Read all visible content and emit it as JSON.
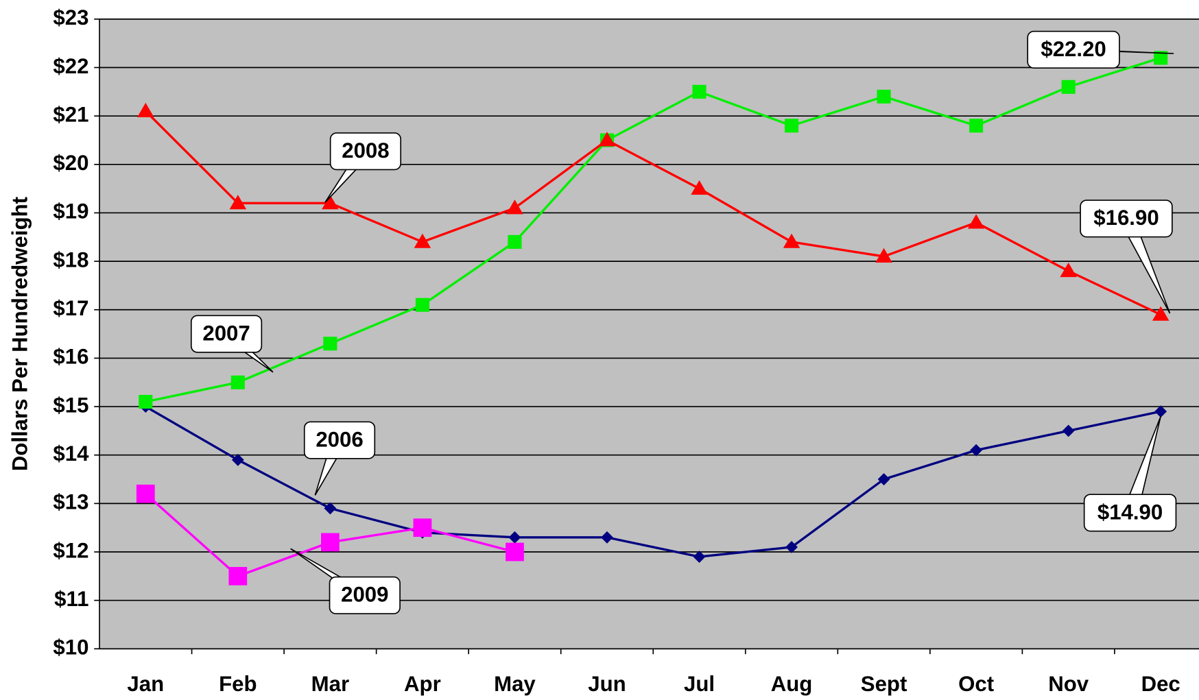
{
  "chart_data": {
    "type": "line",
    "y_label": "Dollars Per Hundredweight",
    "categories": [
      "Jan",
      "Feb",
      "Mar",
      "Apr",
      "May",
      "Jun",
      "Jul",
      "Aug",
      "Sept",
      "Oct",
      "Nov",
      "Dec"
    ],
    "ylim": [
      10,
      23
    ],
    "yticks": [
      {
        "value": 10,
        "label": "$10"
      },
      {
        "value": 11,
        "label": "$11"
      },
      {
        "value": 12,
        "label": "$12"
      },
      {
        "value": 13,
        "label": "$13"
      },
      {
        "value": 14,
        "label": "$14"
      },
      {
        "value": 15,
        "label": "$15"
      },
      {
        "value": 16,
        "label": "$16"
      },
      {
        "value": 17,
        "label": "$17"
      },
      {
        "value": 18,
        "label": "$18"
      },
      {
        "value": 19,
        "label": "$19"
      },
      {
        "value": 20,
        "label": "$20"
      },
      {
        "value": 21,
        "label": "$21"
      },
      {
        "value": 22,
        "label": "$22"
      },
      {
        "value": 23,
        "label": "$23"
      }
    ],
    "grid": true,
    "series": [
      {
        "name": "2006",
        "color": "#000080",
        "marker": "diamond",
        "values": [
          15.0,
          13.9,
          12.9,
          12.4,
          12.3,
          12.3,
          11.9,
          12.1,
          13.5,
          14.1,
          14.5,
          14.9
        ],
        "value_labels": [
          null,
          null,
          null,
          null,
          null,
          null,
          null,
          null,
          null,
          null,
          null,
          "$14.90"
        ]
      },
      {
        "name": "2007",
        "color": "#00ee00",
        "marker": "square",
        "values": [
          15.1,
          15.5,
          16.3,
          17.1,
          18.4,
          20.5,
          21.5,
          20.8,
          21.4,
          20.8,
          21.6,
          22.2
        ],
        "value_labels": [
          null,
          null,
          null,
          null,
          null,
          null,
          null,
          null,
          null,
          null,
          null,
          "$22.20"
        ]
      },
      {
        "name": "2008",
        "color": "#ff0000",
        "marker": "triangle",
        "values": [
          21.1,
          19.2,
          19.2,
          18.4,
          19.1,
          20.5,
          19.5,
          18.4,
          18.1,
          18.8,
          17.8,
          16.9
        ],
        "value_labels": [
          null,
          null,
          null,
          null,
          null,
          null,
          null,
          null,
          null,
          null,
          null,
          "$16.90"
        ]
      },
      {
        "name": "2009",
        "color": "#ff00ff",
        "marker": "bigsquare",
        "values": [
          13.2,
          11.5,
          12.2,
          12.5,
          12.0,
          null,
          null,
          null,
          null,
          null,
          null,
          null
        ]
      }
    ]
  }
}
